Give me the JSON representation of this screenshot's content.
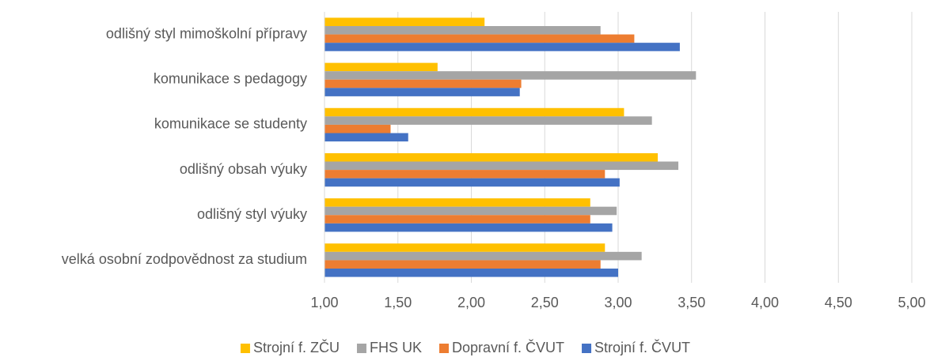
{
  "chart_data": {
    "type": "hbar",
    "categories": [
      "odlišný styl mimoškolní přípravy",
      "komunikace s pedagogy",
      "komunikace se studenty",
      "odlišný obsah výuky",
      "odlišný styl výuky",
      "velká osobní zodpovědnost za studium"
    ],
    "series": [
      {
        "name": "Strojní f. ZČU",
        "color": "#FFC000",
        "values": [
          2.09,
          1.77,
          3.04,
          3.27,
          2.81,
          2.91
        ]
      },
      {
        "name": "FHS UK",
        "color": "#A5A5A5",
        "values": [
          2.88,
          3.53,
          3.23,
          3.41,
          2.99,
          3.16
        ]
      },
      {
        "name": "Dopravní f. ČVUT",
        "color": "#ED7D31",
        "values": [
          3.11,
          2.34,
          1.45,
          2.91,
          2.81,
          2.88
        ]
      },
      {
        "name": "Strojní f. ČVUT",
        "color": "#4472C4",
        "values": [
          3.42,
          2.33,
          1.57,
          3.01,
          2.96,
          3.0
        ]
      }
    ],
    "xlim": [
      1,
      5
    ],
    "xticks": [
      {
        "value": 1,
        "label": "1,00"
      },
      {
        "value": 1.5,
        "label": "1,50"
      },
      {
        "value": 2,
        "label": "2,00"
      },
      {
        "value": 2.5,
        "label": "2,50"
      },
      {
        "value": 3,
        "label": "3,00"
      },
      {
        "value": 3.5,
        "label": "3,50"
      },
      {
        "value": 4,
        "label": "4,00"
      },
      {
        "value": 4.5,
        "label": "4,50"
      },
      {
        "value": 5,
        "label": "5,00"
      }
    ],
    "grid": true,
    "legend": "bottom"
  }
}
